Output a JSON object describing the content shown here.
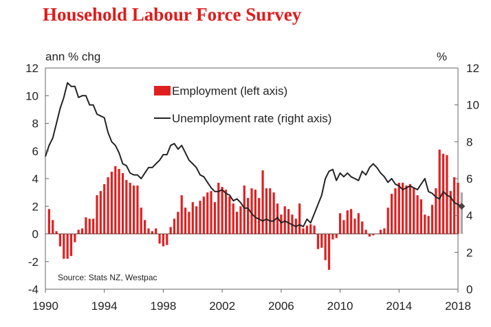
{
  "title": "Household Labour Force Survey",
  "chart_data": {
    "type": "bar+line",
    "left_axis_label": "ann % chg",
    "right_axis_label": "%",
    "left_ylim": [
      -4,
      12
    ],
    "right_ylim": [
      0,
      12
    ],
    "left_ticks": [
      "12",
      "10",
      "8",
      "6",
      "4",
      "2",
      "0",
      "-2",
      "-4"
    ],
    "right_ticks": [
      "12",
      "10",
      "8",
      "6",
      "4",
      "2",
      "0"
    ],
    "x_range": [
      1990,
      2018
    ],
    "x_ticks": [
      "1990",
      "1994",
      "1998",
      "2002",
      "2006",
      "2010",
      "2014",
      "2018"
    ],
    "source": "Source: Stats NZ, Westpac",
    "colors": {
      "employment": "#e02020",
      "employment_latest": "#a6a6a6",
      "unemployment": "#222222",
      "title": "#e01b1b"
    },
    "series": [
      {
        "name": "Employment (left axis)",
        "kind": "bar",
        "axis": "left",
        "start": 1990.25,
        "step": 0.25,
        "values": [
          1.8,
          1.0,
          0.2,
          -0.9,
          -1.8,
          -1.8,
          -1.6,
          -0.6,
          0.3,
          0.4,
          1.2,
          1.1,
          1.1,
          2.8,
          3.1,
          3.6,
          4.1,
          4.5,
          4.9,
          4.7,
          4.4,
          3.9,
          3.7,
          3.5,
          3.5,
          1.9,
          1.0,
          0.4,
          0.2,
          0.4,
          -0.7,
          -0.9,
          -0.8,
          0.5,
          1.1,
          1.6,
          2.8,
          1.9,
          1.6,
          2.3,
          2.0,
          2.4,
          2.7,
          3.0,
          3.1,
          2.3,
          3.7,
          3.4,
          3.2,
          2.7,
          2.2,
          1.6,
          2.0,
          3.5,
          2.6,
          3.3,
          3.2,
          2.6,
          4.6,
          3.3,
          3.3,
          3.0,
          2.2,
          1.4,
          2.0,
          1.8,
          1.4,
          1.1,
          2.2,
          0.4,
          0.6,
          0.7,
          0.6,
          -1.1,
          -1.0,
          -1.9,
          -2.6,
          -0.4,
          -0.3,
          1.5,
          1.0,
          1.7,
          1.8,
          1.1,
          1.5,
          0.9,
          0.3,
          -0.2,
          -0.1,
          0.0,
          0.3,
          0.4,
          1.9,
          2.9,
          3.3,
          3.7,
          3.7,
          3.5,
          3.6,
          3.3,
          2.8,
          2.5,
          1.4,
          1.3,
          2.1,
          3.3,
          6.1,
          5.8,
          5.7,
          3.1,
          4.1,
          3.7,
          3.0
        ]
      },
      {
        "name": "Unemployment rate (right axis)",
        "kind": "line",
        "axis": "right",
        "start": 1990.0,
        "step": 0.25,
        "values": [
          7.2,
          7.8,
          8.2,
          9.0,
          9.8,
          10.4,
          11.2,
          11.0,
          11.0,
          10.4,
          10.5,
          10.5,
          10.0,
          10.0,
          9.5,
          9.4,
          9.3,
          8.5,
          8.0,
          7.8,
          7.4,
          6.8,
          6.7,
          6.3,
          6.2,
          6.2,
          6.0,
          6.3,
          6.6,
          6.6,
          6.8,
          7.0,
          7.3,
          7.3,
          7.8,
          7.9,
          7.6,
          7.8,
          7.4,
          7.0,
          6.8,
          6.6,
          6.2,
          6.1,
          5.8,
          5.5,
          5.3,
          5.3,
          5.4,
          5.2,
          5.1,
          4.8,
          4.9,
          4.7,
          4.4,
          4.4,
          4.1,
          3.9,
          3.8,
          3.7,
          3.8,
          3.7,
          3.7,
          3.9,
          3.6,
          3.7,
          3.6,
          3.5,
          3.4,
          3.5,
          3.4,
          3.8,
          3.6,
          4.1,
          4.6,
          5.1,
          6.0,
          6.4,
          6.5,
          5.9,
          6.3,
          6.1,
          6.3,
          6.1,
          6.0,
          5.9,
          6.4,
          6.2,
          6.6,
          6.8,
          6.6,
          6.3,
          6.1,
          5.8,
          6.0,
          5.7,
          5.6,
          5.4,
          5.5,
          5.6,
          5.5,
          5.4,
          5.7,
          6.0,
          5.3,
          5.2,
          5.0,
          4.9,
          5.3,
          5.1,
          5.0,
          4.7,
          4.6,
          4.5
        ]
      }
    ]
  }
}
